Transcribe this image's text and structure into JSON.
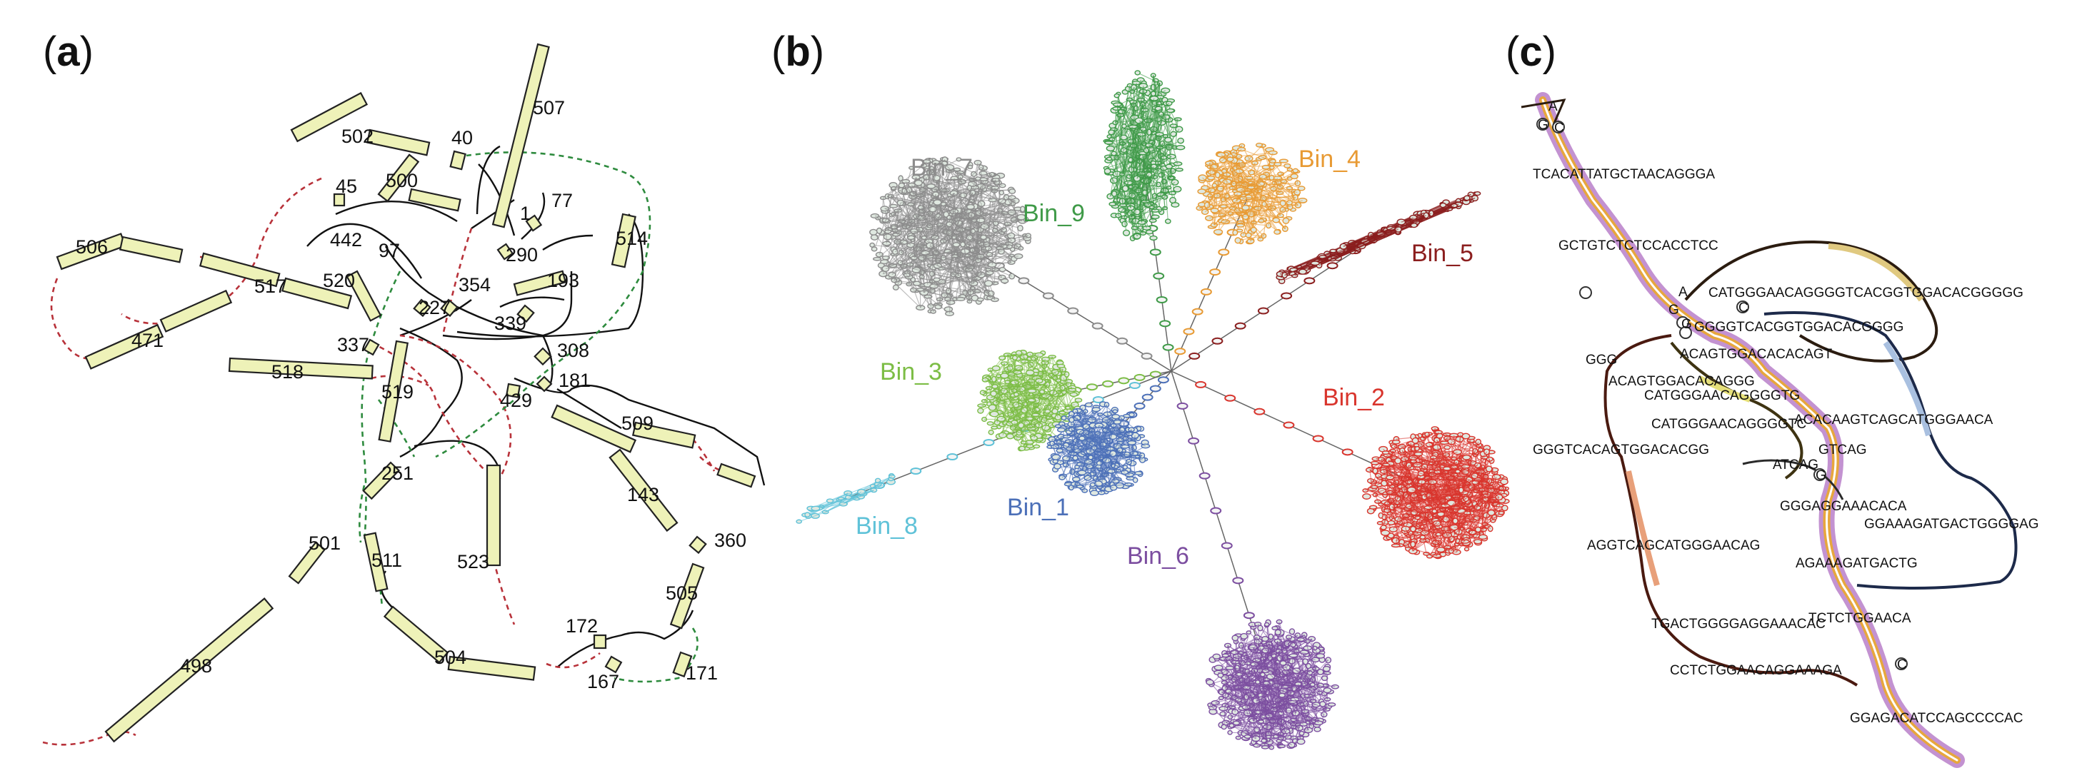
{
  "panels": {
    "a": {
      "label": "a"
    },
    "b": {
      "label": "b"
    },
    "c": {
      "label": "c"
    }
  },
  "panel_a_nodes": [
    "507",
    "502",
    "40",
    "500",
    "45",
    "1",
    "77",
    "290",
    "514",
    "506",
    "442",
    "97",
    "193",
    "517",
    "520",
    "354",
    "227",
    "339",
    "471",
    "337",
    "308",
    "518",
    "181",
    "519",
    "429",
    "509",
    "251",
    "143",
    "360",
    "501",
    "511",
    "523",
    "505",
    "172",
    "504",
    "498",
    "167",
    "171"
  ],
  "panel_b_bins": [
    {
      "name": "Bin_7",
      "color": "#8c8c8c"
    },
    {
      "name": "Bin_9",
      "color": "#3f9a48"
    },
    {
      "name": "Bin_4",
      "color": "#e89a33"
    },
    {
      "name": "Bin_5",
      "color": "#8b1e1e"
    },
    {
      "name": "Bin_3",
      "color": "#7cbd45"
    },
    {
      "name": "Bin_2",
      "color": "#d9352d"
    },
    {
      "name": "Bin_8",
      "color": "#5fc2d8"
    },
    {
      "name": "Bin_1",
      "color": "#4c70b8"
    },
    {
      "name": "Bin_6",
      "color": "#7c4ea0"
    }
  ],
  "panel_c_sequences": [
    "TCACATTATGCTAACAGGGA",
    "GCTGTCTCTCCACCTCC",
    "CATGGGAACAGGGGTCACGGTGGACACGGGGG",
    "GGGGTCACGGTGGACACGGGG",
    "ACAGTGGACACACAGT",
    "GGG",
    "ACAGTGGACACAGGG",
    "CATGGGAACAGGGGTG",
    "CATGGGAACAGGGGTC",
    "ACACAAGTCAGCATGGGAACA",
    "GGGTCACAGTGGACACGG",
    "ATCAG",
    "GTCAG",
    "GGGAGGAAACACA",
    "GGAAAGATGACTGGGGAG",
    "AGGTCAGCATGGGAACAG",
    "AGAAAGATGACTG",
    "TGACTGGGGAGGAAACAC",
    "TCTCTGGAACA",
    "CCTCTGGAACAGGAAAGA",
    "GGAGACATCCAGCCCCAC"
  ],
  "panel_c_bases": [
    "A",
    "G",
    "C",
    "A",
    "G",
    "G",
    "C",
    "G",
    "C"
  ]
}
